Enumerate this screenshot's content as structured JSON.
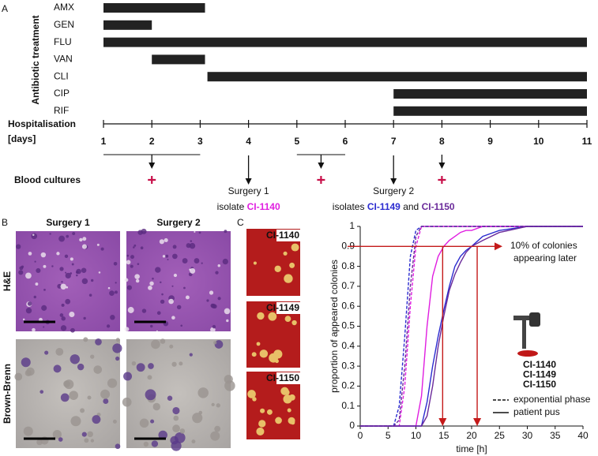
{
  "panel_labels": [
    "A",
    "B",
    "C"
  ],
  "chart_data": [
    {
      "type": "gantt",
      "y_label": "Antibiotic treatment",
      "x_label": [
        "Hospitalisation",
        "[days]"
      ],
      "xlim": [
        1,
        11
      ],
      "xticks": [
        1,
        2,
        3,
        4,
        5,
        6,
        7,
        8,
        9,
        10,
        11
      ],
      "color": "#222222",
      "tasks": [
        {
          "name": "AMX",
          "start": 1,
          "end": 3.1
        },
        {
          "name": "GEN",
          "start": 1,
          "end": 2
        },
        {
          "name": "FLU",
          "start": 1,
          "end": 11
        },
        {
          "name": "VAN",
          "start": 2,
          "end": 3.1
        },
        {
          "name": "CLI",
          "start": 3.15,
          "end": 11
        },
        {
          "name": "CIP",
          "start": 7,
          "end": 11
        },
        {
          "name": "RIF",
          "start": 7,
          "end": 11
        }
      ],
      "blood_cultures": {
        "label": "Blood cultures",
        "marker_color": "#c8104a",
        "events": [
          {
            "day": 2,
            "range": [
              1,
              3
            ]
          },
          {
            "day": 5.5,
            "range": [
              5,
              6
            ]
          },
          {
            "day": 8
          }
        ]
      },
      "surgeries": [
        {
          "day": 4,
          "title": "Surgery 1",
          "text": "isolate",
          "isolates": [
            "CI-1140"
          ]
        },
        {
          "day": 7,
          "title": "Surgery 2",
          "text": "isolates",
          "isolates": [
            "CI-1149",
            "CI-1150"
          ],
          "joiner": "and"
        }
      ]
    },
    {
      "type": "line",
      "y_label": "proportion of appeared colonies",
      "x_label": "time [h]",
      "xlim": [
        0,
        40
      ],
      "xticks": [
        0,
        5,
        10,
        15,
        20,
        25,
        30,
        35,
        40
      ],
      "ylim": [
        0,
        1
      ],
      "yticks": [
        0,
        0.1,
        0.2,
        0.3,
        0.4,
        0.5,
        0.6,
        0.7,
        0.8,
        0.9,
        1
      ],
      "x": [
        0,
        5,
        6,
        7,
        8,
        9,
        10,
        11,
        12,
        13,
        14,
        15,
        16,
        17,
        18,
        19,
        20,
        22,
        25,
        30,
        35,
        40
      ],
      "series": [
        {
          "name": "CI-1140",
          "color": "#e01ee0",
          "exponential_phase": [
            0,
            0,
            0,
            0,
            0.2,
            0.6,
            0.9,
            1,
            1,
            1,
            1,
            1,
            1,
            1,
            1,
            1,
            1,
            1,
            1,
            1,
            1,
            1
          ],
          "patient_pus": [
            0,
            0,
            0,
            0,
            0,
            0,
            0,
            0.15,
            0.5,
            0.75,
            0.85,
            0.9,
            0.93,
            0.95,
            0.97,
            0.98,
            0.98,
            1,
            1,
            1,
            1,
            1
          ]
        },
        {
          "name": "CI-1149",
          "color": "#2b2bd0",
          "exponential_phase": [
            0,
            0,
            0,
            0.1,
            0.45,
            0.85,
            0.98,
            1,
            1,
            1,
            1,
            1,
            1,
            1,
            1,
            1,
            1,
            1,
            1,
            1,
            1,
            1
          ],
          "patient_pus": [
            0,
            0,
            0,
            0,
            0,
            0,
            0,
            0,
            0.12,
            0.3,
            0.45,
            0.58,
            0.7,
            0.8,
            0.85,
            0.88,
            0.9,
            0.95,
            0.98,
            1,
            1,
            1
          ]
        },
        {
          "name": "CI-1150",
          "color": "#6a2a9a",
          "exponential_phase": [
            0,
            0,
            0,
            0.03,
            0.3,
            0.7,
            0.95,
            1,
            1,
            1,
            1,
            1,
            1,
            1,
            1,
            1,
            1,
            1,
            1,
            1,
            1,
            1
          ],
          "patient_pus": [
            0,
            0,
            0,
            0,
            0,
            0,
            0,
            0,
            0.05,
            0.2,
            0.4,
            0.55,
            0.68,
            0.76,
            0.82,
            0.87,
            0.9,
            0.93,
            0.97,
            1,
            1,
            1
          ]
        }
      ],
      "legend_styles": [
        {
          "label": "exponential phase",
          "dashed": true
        },
        {
          "label": "patient pus",
          "dashed": false
        }
      ],
      "threshold": 0.9,
      "later_times": [
        14.8,
        21
      ],
      "annotation_color": "#c41a1a",
      "annotation": [
        "10% of colonies",
        "appearing later"
      ]
    }
  ],
  "panel_b": {
    "columns": [
      "Surgery 1",
      "Surgery 2"
    ],
    "rows": [
      "H&E",
      "Brown-Brenn"
    ]
  }
}
